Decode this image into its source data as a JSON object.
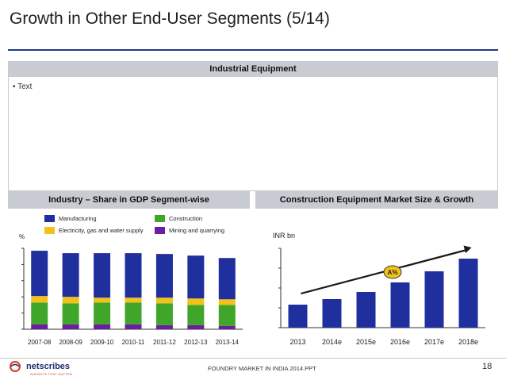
{
  "title": "Growth in Other End-User Segments (5/14)",
  "sections": {
    "industrial_heading": "Industrial Equipment",
    "bullet_text": "• Text",
    "gdp_heading": "Industry – Share in GDP Segment-wise",
    "cem_heading": "Construction Equipment Market Size & Growth"
  },
  "colors": {
    "manufacturing": "#1f2f9e",
    "electricity": "#f2c21b",
    "construction": "#3fa62a",
    "mining": "#6a1fa0",
    "bar_blue": "#1f2f9e",
    "band": "#c9cbd3",
    "rule": "#1f3b8c",
    "badge": "#f2c21b"
  },
  "chart_data": [
    {
      "type": "bar",
      "stacked": true,
      "ylabel": "%",
      "categories": [
        "2007-08",
        "2008-09",
        "2009-10",
        "2010-11",
        "2011-12",
        "2012-13",
        "2013-14"
      ],
      "ylim": [
        0,
        100
      ],
      "series": [
        {
          "name": "Mining and quarrying",
          "values": [
            6,
            6,
            6,
            6,
            5,
            5,
            4
          ]
        },
        {
          "name": "Construction",
          "values": [
            27,
            26,
            27,
            27,
            27,
            25,
            26
          ]
        },
        {
          "name": "Electricity, gas and water supply",
          "values": [
            8,
            8,
            6,
            6,
            7,
            8,
            7
          ]
        },
        {
          "name": "Manufacturing",
          "values": [
            56,
            54,
            55,
            55,
            54,
            53,
            51
          ]
        }
      ],
      "legend_position": "top",
      "grid": false
    },
    {
      "type": "bar",
      "ylabel": "INR bn",
      "categories": [
        "2013",
        "2014e",
        "2015e",
        "2016e",
        "2017e",
        "2018e"
      ],
      "values": [
        29,
        36,
        45,
        57,
        71,
        87
      ],
      "ylim": [
        0,
        100
      ],
      "annotation": "A%",
      "grid": false
    }
  ],
  "footer": {
    "text": "FOUNDRY MARKET IN INDIA 2014.PPT",
    "page": "18",
    "logo_text": "netscribes",
    "logo_tagline": "INSIGHTS THAT MATTER"
  }
}
